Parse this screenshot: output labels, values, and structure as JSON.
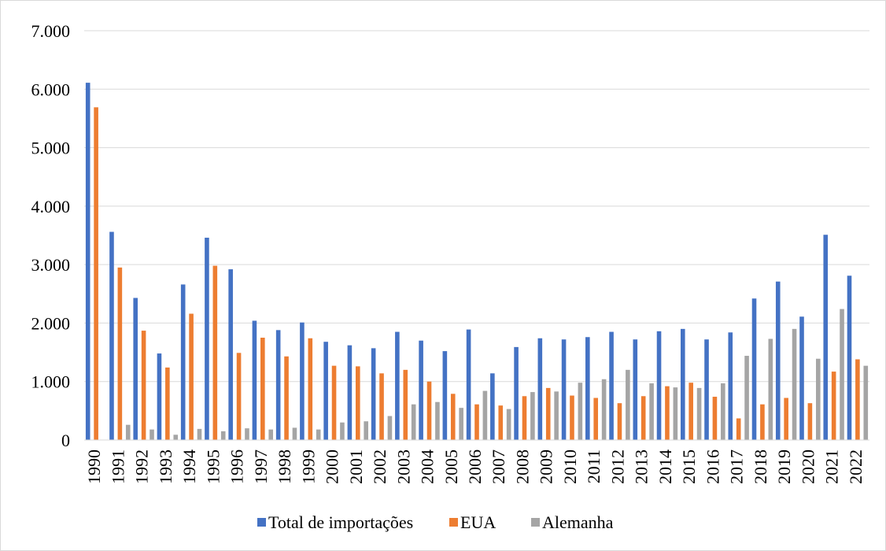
{
  "chart_data": {
    "type": "bar",
    "title": "",
    "xlabel": "",
    "ylabel": "",
    "ylim": [
      0,
      7000
    ],
    "yticks": [
      0,
      1000,
      2000,
      3000,
      4000,
      5000,
      6000,
      7000
    ],
    "ytick_labels": [
      "0",
      "1.000",
      "2.000",
      "3.000",
      "4.000",
      "5.000",
      "6.000",
      "7.000"
    ],
    "grid": "horizontal",
    "legend_position": "bottom",
    "categories": [
      "1990",
      "1991",
      "1992",
      "1993",
      "1994",
      "1995",
      "1996",
      "1997",
      "1998",
      "1999",
      "2000",
      "2001",
      "2002",
      "2003",
      "2004",
      "2005",
      "2006",
      "2007",
      "2008",
      "2009",
      "2010",
      "2011",
      "2012",
      "2013",
      "2014",
      "2015",
      "2016",
      "2017",
      "2018",
      "2019",
      "2020",
      "2021",
      "2022"
    ],
    "series": [
      {
        "name": "Total de importações",
        "color": "#4472c4",
        "values": [
          6110,
          3560,
          2430,
          1480,
          2660,
          3460,
          2920,
          2040,
          1880,
          2010,
          1680,
          1620,
          1570,
          1850,
          1700,
          1520,
          1890,
          1140,
          1590,
          1740,
          1720,
          1760,
          1850,
          1720,
          1860,
          1900,
          1720,
          1840,
          2420,
          2710,
          2110,
          3510,
          2810
        ]
      },
      {
        "name": "EUA",
        "color": "#ed7d31",
        "values": [
          5690,
          2950,
          1870,
          1240,
          2160,
          2980,
          1490,
          1750,
          1430,
          1740,
          1270,
          1260,
          1140,
          1200,
          1000,
          790,
          610,
          590,
          750,
          890,
          760,
          720,
          630,
          750,
          920,
          980,
          740,
          370,
          610,
          720,
          630,
          1170,
          1380
        ]
      },
      {
        "name": "Alemanha",
        "color": "#a5a5a5",
        "values": [
          0,
          260,
          180,
          90,
          190,
          150,
          200,
          180,
          210,
          180,
          300,
          320,
          410,
          610,
          650,
          550,
          840,
          530,
          820,
          830,
          980,
          1040,
          1200,
          970,
          900,
          890,
          970,
          1440,
          1730,
          1900,
          1390,
          2240,
          1270
        ]
      }
    ]
  }
}
